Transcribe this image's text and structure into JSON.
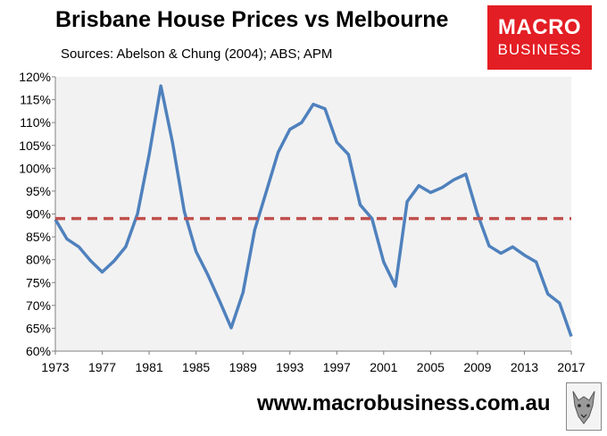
{
  "title": "Brisbane House Prices vs Melbourne",
  "subtitle": "Sources: Abelson & Chung (2004); ABS; APM",
  "logo": {
    "line1": "MACRO",
    "line2": "BUSINESS",
    "color": "#e31e24",
    "icon": "wolf-icon"
  },
  "footer": "www.macrobusiness.com.au",
  "chart_data": {
    "type": "line",
    "title": "Brisbane House Prices vs Melbourne",
    "xlabel": "",
    "ylabel": "",
    "xlim": [
      1973,
      2017
    ],
    "ylim": [
      60,
      120
    ],
    "x_ticks": [
      "1973",
      "1977",
      "1981",
      "1985",
      "1989",
      "1993",
      "1997",
      "2001",
      "2005",
      "2009",
      "2013",
      "2017"
    ],
    "y_ticks": [
      "60%",
      "65%",
      "70%",
      "75%",
      "80%",
      "85%",
      "90%",
      "95%",
      "100%",
      "105%",
      "110%",
      "115%",
      "120%"
    ],
    "grid": false,
    "plot_background": "#f2f2f2",
    "series": [
      {
        "line_color": "#4f81bd",
        "style": "solid",
        "x": [
          1973,
          1974,
          1975,
          1976,
          1977,
          1978,
          1979,
          1980,
          1981,
          1982,
          1983,
          1984,
          1985,
          1986,
          1987,
          1988,
          1989,
          1990,
          1991,
          1992,
          1993,
          1994,
          1995,
          1996,
          1997,
          1998,
          1999,
          2000,
          2001,
          2002,
          2003,
          2004,
          2005,
          2006,
          2007,
          2008,
          2009,
          2010,
          2011,
          2012,
          2013,
          2014,
          2015,
          2016,
          2017
        ],
        "values": [
          88.8,
          84.5,
          82.8,
          79.8,
          77.3,
          79.7,
          82.8,
          90.0,
          103.0,
          118.0,
          105.5,
          90.5,
          81.8,
          76.7,
          71.0,
          65.1,
          72.8,
          86.5,
          95.0,
          103.5,
          108.5,
          110.0,
          114.0,
          113.0,
          105.7,
          103.0,
          92.0,
          89.0,
          79.5,
          74.2,
          92.7,
          96.2,
          94.7,
          95.8,
          97.5,
          98.7,
          90.0,
          83.0,
          81.4,
          82.8,
          81.0,
          79.5,
          72.5,
          70.5,
          63.2
        ]
      },
      {
        "line_color": "#c0504d",
        "style": "dashed",
        "x": [
          1973,
          2017
        ],
        "values": [
          89.0,
          89.0
        ]
      }
    ]
  }
}
